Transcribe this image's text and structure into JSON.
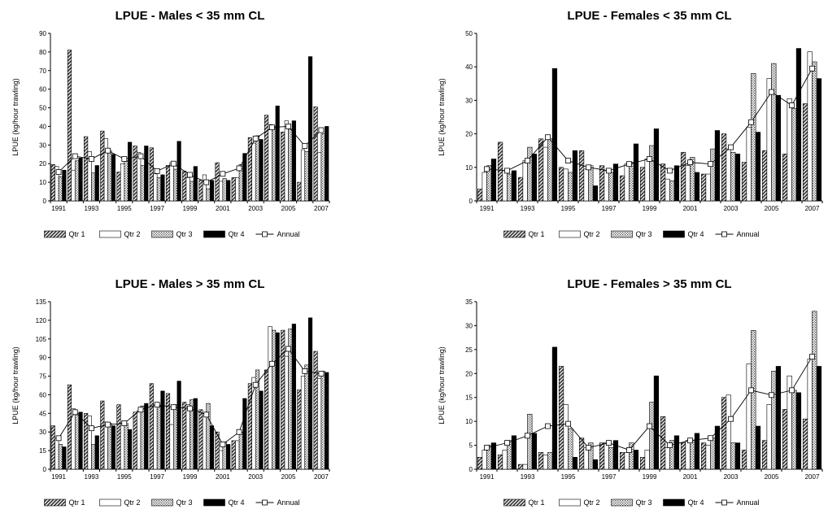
{
  "chart_data": [
    {
      "type": "bar",
      "title": "LPUE - Males < 35 mm CL",
      "ylabel": "LPUE (kg/hour trawling)",
      "xlabel": "",
      "ylim": [
        0,
        90
      ],
      "yticks": [
        0,
        10,
        20,
        30,
        40,
        50,
        60,
        70,
        80,
        90
      ],
      "xtick_labels": [
        "1991",
        "1993",
        "1995",
        "1997",
        "1999",
        "2001",
        "2003",
        "2005",
        "2007"
      ],
      "years": [
        1991,
        1992,
        1993,
        1994,
        1995,
        1996,
        1997,
        1998,
        1999,
        2000,
        2001,
        2002,
        2003,
        2004,
        2005,
        2006,
        2007
      ],
      "legend_position": "bottom",
      "series": [
        {
          "name": "Qtr 1",
          "kind": "bar",
          "values": [
            19.5,
            81,
            34.5,
            37.5,
            15.5,
            29.5,
            28.5,
            19,
            16,
            11,
            20.5,
            12.5,
            34,
            46,
            37,
            10,
            50.5
          ]
        },
        {
          "name": "Qtr 2",
          "kind": "bar",
          "values": [
            18.5,
            16.5,
            26.5,
            33.5,
            20,
            26,
            14.5,
            20.5,
            12.5,
            14,
            10.5,
            12.5,
            31,
            41,
            43,
            27.5,
            26
          ]
        },
        {
          "name": "Qtr 3",
          "kind": "bar",
          "values": [
            13,
            21.5,
            15,
            27,
            21.5,
            19,
            12.5,
            17,
            10.5,
            6.5,
            12,
            19.5,
            35,
            40,
            38.5,
            26.5,
            36
          ]
        },
        {
          "name": "Qtr 4",
          "kind": "bar",
          "values": [
            16.5,
            23,
            19,
            25,
            31.5,
            29.5,
            14,
            32,
            18.5,
            11,
            11,
            25.5,
            33,
            51,
            43,
            77.5,
            40
          ]
        },
        {
          "name": "Annual",
          "kind": "line",
          "values": [
            15.5,
            24,
            22.5,
            27,
            22.5,
            24,
            16,
            20,
            14,
            10,
            14.5,
            17.5,
            33.5,
            39.5,
            40,
            29.5,
            38
          ]
        }
      ]
    },
    {
      "type": "bar",
      "title": "LPUE - Females < 35 mm CL",
      "ylabel": "LPUE (kg/hour trawling)",
      "xlabel": "",
      "ylim": [
        0,
        50
      ],
      "yticks": [
        0,
        10,
        20,
        30,
        40,
        50
      ],
      "xtick_labels": [
        "1991",
        "1993",
        "1995",
        "1997",
        "1999",
        "2001",
        "2003",
        "2005",
        "2007"
      ],
      "years": [
        1991,
        1992,
        1993,
        1994,
        1995,
        1996,
        1997,
        1998,
        1999,
        2000,
        2001,
        2002,
        2003,
        2004,
        2005,
        2006,
        2007
      ],
      "legend_position": "bottom",
      "series": [
        {
          "name": "Qtr 1",
          "kind": "bar",
          "values": [
            3.5,
            17.5,
            7,
            18.5,
            10,
            15,
            10.5,
            7.5,
            10,
            11,
            14.5,
            8,
            20,
            11.5,
            15,
            14,
            29
          ]
        },
        {
          "name": "Qtr 2",
          "kind": "bar",
          "values": [
            8.5,
            9,
            12,
            16,
            9.5,
            9.5,
            9,
            11,
            12.5,
            6.5,
            10.5,
            8,
            15.5,
            22,
            36.5,
            30.5,
            44.5
          ]
        },
        {
          "name": "Qtr 3",
          "kind": "bar",
          "values": [
            10.5,
            8,
            16,
            18.5,
            8.5,
            10.5,
            8.5,
            11.5,
            16.5,
            6,
            13,
            15.5,
            14.5,
            38,
            41,
            27.5,
            41.5
          ]
        },
        {
          "name": "Qtr 4",
          "kind": "bar",
          "values": [
            12.5,
            9,
            14,
            39.5,
            15,
            4.5,
            11,
            17,
            21.5,
            10.5,
            8.5,
            21,
            14,
            20.5,
            31.5,
            45.5,
            36.5
          ]
        },
        {
          "name": "Annual",
          "kind": "line",
          "values": [
            9.5,
            9,
            12,
            19,
            12,
            10,
            9,
            11,
            12.5,
            9,
            11.5,
            11,
            16,
            23.5,
            32.5,
            28.5,
            39.5
          ]
        }
      ]
    },
    {
      "type": "bar",
      "title": "LPUE - Males > 35 mm CL",
      "ylabel": "LPUE (kg/hour trawling)",
      "xlabel": "",
      "ylim": [
        0,
        135
      ],
      "yticks": [
        0,
        15,
        30,
        45,
        60,
        75,
        90,
        105,
        120,
        135
      ],
      "xtick_labels": [
        "1991",
        "1993",
        "1995",
        "1997",
        "1999",
        "2001",
        "2003",
        "2005",
        "2007"
      ],
      "years": [
        1991,
        1992,
        1993,
        1994,
        1995,
        1996,
        1997,
        1998,
        1999,
        2000,
        2001,
        2002,
        2003,
        2004,
        2005,
        2006,
        2007
      ],
      "legend_position": "bottom",
      "series": [
        {
          "name": "Qtr 1",
          "kind": "bar",
          "values": [
            35,
            68,
            45,
            55,
            52,
            46,
            69,
            61,
            54,
            48,
            30,
            23,
            69,
            80,
            112,
            64,
            95
          ]
        },
        {
          "name": "Qtr 2",
          "kind": "bar",
          "values": [
            25,
            49,
            43,
            38,
            37,
            47,
            52,
            36,
            52,
            45,
            15,
            23,
            74,
            115,
            91,
            75,
            73
          ]
        },
        {
          "name": "Qtr 3",
          "kind": "bar",
          "values": [
            20,
            45,
            20,
            37,
            37,
            51,
            51,
            52,
            56,
            53,
            22,
            30,
            80,
            112,
            113,
            84,
            79
          ]
        },
        {
          "name": "Qtr 4",
          "kind": "bar",
          "values": [
            18,
            46,
            27,
            35,
            32,
            53,
            63,
            71,
            57,
            35,
            20,
            57,
            63,
            110,
            117,
            122,
            78
          ]
        },
        {
          "name": "Annual",
          "kind": "line",
          "values": [
            25,
            46,
            33,
            36,
            37,
            48,
            52,
            50,
            49,
            44,
            20,
            30,
            68,
            85,
            97,
            79,
            77
          ]
        }
      ]
    },
    {
      "type": "bar",
      "title": "LPUE - Females > 35 mm CL",
      "ylabel": "LPUE (kg/hour trawling)",
      "xlabel": "",
      "ylim": [
        0,
        35
      ],
      "yticks": [
        0,
        5,
        10,
        15,
        20,
        25,
        30,
        35
      ],
      "xtick_labels": [
        "1991",
        "1993",
        "1995",
        "1997",
        "1999",
        "2001",
        "2003",
        "2005",
        "2007"
      ],
      "years": [
        1991,
        1992,
        1993,
        1994,
        1995,
        1996,
        1997,
        1998,
        1999,
        2000,
        2001,
        2002,
        2003,
        2004,
        2005,
        2006,
        2007
      ],
      "legend_position": "bottom",
      "series": [
        {
          "name": "Qtr 1",
          "kind": "bar",
          "values": [
            2.5,
            3,
            1,
            3.5,
            21.5,
            6.5,
            5.5,
            3.5,
            2.5,
            11,
            5.5,
            5.5,
            15,
            4,
            6,
            12.5,
            10.5
          ]
        },
        {
          "name": "Qtr 2",
          "kind": "bar",
          "values": [
            4,
            4,
            1,
            3,
            13.5,
            4.5,
            5.5,
            3.5,
            4,
            4.5,
            6,
            5,
            15.5,
            22,
            13.5,
            19.5,
            23
          ]
        },
        {
          "name": "Qtr 3",
          "kind": "bar",
          "values": [
            5,
            6,
            11.5,
            3.5,
            8.5,
            5.5,
            4.5,
            5.5,
            14,
            6,
            6,
            6.5,
            5.5,
            29,
            20.5,
            16.5,
            33
          ]
        },
        {
          "name": "Qtr 4",
          "kind": "bar",
          "values": [
            5.5,
            7,
            7.5,
            25.5,
            2.5,
            2,
            6,
            4,
            19.5,
            7,
            7.5,
            9,
            5.5,
            9,
            21.5,
            16,
            21.5
          ]
        },
        {
          "name": "Annual",
          "kind": "line",
          "values": [
            4.5,
            5.5,
            7,
            9,
            9.5,
            4.5,
            5.5,
            4,
            9,
            5,
            6,
            6.5,
            10.5,
            16.5,
            15.5,
            16.5,
            23.5
          ]
        }
      ]
    }
  ]
}
